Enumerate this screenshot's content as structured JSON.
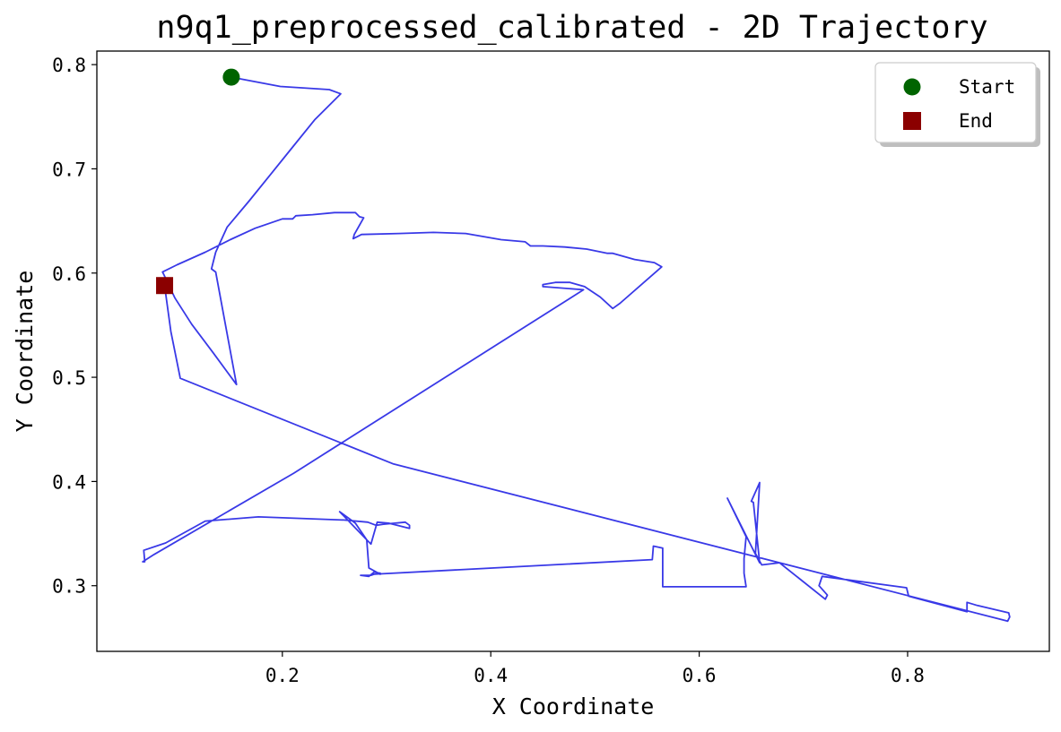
{
  "chart_data": {
    "type": "line",
    "title": "n9q1_preprocessed_calibrated - 2D Trajectory",
    "xlabel": "X Coordinate",
    "ylabel": "Y Coordinate",
    "xlim": [
      0.022,
      0.936
    ],
    "ylim": [
      0.237,
      0.813
    ],
    "xticks": [
      0.2,
      0.4,
      0.6,
      0.8
    ],
    "xtick_labels": [
      "0.2",
      "0.4",
      "0.6",
      "0.8"
    ],
    "yticks": [
      0.3,
      0.4,
      0.5,
      0.6,
      0.7,
      0.8
    ],
    "ytick_labels": [
      "0.3",
      "0.4",
      "0.5",
      "0.6",
      "0.7",
      "0.8"
    ],
    "grid": false,
    "legend_position": "top-right",
    "colors": {
      "line": "#2e2ee6",
      "start": "#006400",
      "end": "#8b0000"
    },
    "series": [
      {
        "x": [
          0.151,
          0.198,
          0.245,
          0.256,
          0.231,
          0.21,
          0.189,
          0.168,
          0.147,
          0.136,
          0.132,
          0.136,
          0.156,
          0.134,
          0.113,
          0.097,
          0.086,
          0.085,
          0.099,
          0.126,
          0.15,
          0.174,
          0.2,
          0.21,
          0.213,
          0.229,
          0.25,
          0.27,
          0.274,
          0.278,
          0.269,
          0.268,
          0.276,
          0.312,
          0.345,
          0.376,
          0.41,
          0.433,
          0.438,
          0.45,
          0.471,
          0.492,
          0.512,
          0.517,
          0.538,
          0.557,
          0.564,
          0.524,
          0.517,
          0.505,
          0.49,
          0.476,
          0.462,
          0.45,
          0.45,
          0.489,
          0.211,
          0.077,
          0.066,
          0.068,
          0.067,
          0.088,
          0.126,
          0.177,
          0.259,
          0.282,
          0.29,
          0.297,
          0.318,
          0.322,
          0.322,
          0.302,
          0.291,
          0.285,
          0.282,
          0.255,
          0.27,
          0.281,
          0.283,
          0.294,
          0.294,
          0.288,
          0.283,
          0.275,
          0.285,
          0.288,
          0.555,
          0.556,
          0.565,
          0.565,
          0.645,
          0.643,
          0.643,
          0.645,
          0.627,
          0.627,
          0.658,
          0.652,
          0.65,
          0.658,
          0.654,
          0.66,
          0.677,
          0.721,
          0.723,
          0.715,
          0.718,
          0.799,
          0.801,
          0.857,
          0.857,
          0.867,
          0.897,
          0.898,
          0.896,
          0.306,
          0.102,
          0.093,
          0.087
        ],
        "y": [
          0.788,
          0.779,
          0.776,
          0.772,
          0.747,
          0.721,
          0.695,
          0.669,
          0.644,
          0.62,
          0.604,
          0.601,
          0.493,
          0.523,
          0.551,
          0.576,
          0.599,
          0.601,
          0.608,
          0.62,
          0.632,
          0.643,
          0.652,
          0.652,
          0.655,
          0.656,
          0.658,
          0.658,
          0.654,
          0.653,
          0.637,
          0.633,
          0.637,
          0.638,
          0.639,
          0.638,
          0.632,
          0.63,
          0.626,
          0.626,
          0.625,
          0.623,
          0.619,
          0.619,
          0.613,
          0.61,
          0.606,
          0.571,
          0.566,
          0.577,
          0.587,
          0.591,
          0.591,
          0.589,
          0.587,
          0.584,
          0.408,
          0.33,
          0.323,
          0.323,
          0.334,
          0.341,
          0.362,
          0.366,
          0.363,
          0.361,
          0.358,
          0.359,
          0.361,
          0.358,
          0.355,
          0.36,
          0.361,
          0.34,
          0.343,
          0.371,
          0.36,
          0.344,
          0.317,
          0.311,
          0.312,
          0.313,
          0.309,
          0.31,
          0.31,
          0.311,
          0.325,
          0.338,
          0.336,
          0.299,
          0.299,
          0.312,
          0.326,
          0.347,
          0.384,
          0.384,
          0.322,
          0.38,
          0.381,
          0.399,
          0.331,
          0.32,
          0.322,
          0.287,
          0.291,
          0.3,
          0.309,
          0.298,
          0.29,
          0.275,
          0.284,
          0.281,
          0.274,
          0.27,
          0.266,
          0.417,
          0.499,
          0.544,
          0.588
        ]
      }
    ],
    "points": [
      {
        "label": "Start",
        "x": 0.151,
        "y": 0.788,
        "marker": "circle"
      },
      {
        "label": "End",
        "x": 0.087,
        "y": 0.588,
        "marker": "square"
      }
    ]
  }
}
